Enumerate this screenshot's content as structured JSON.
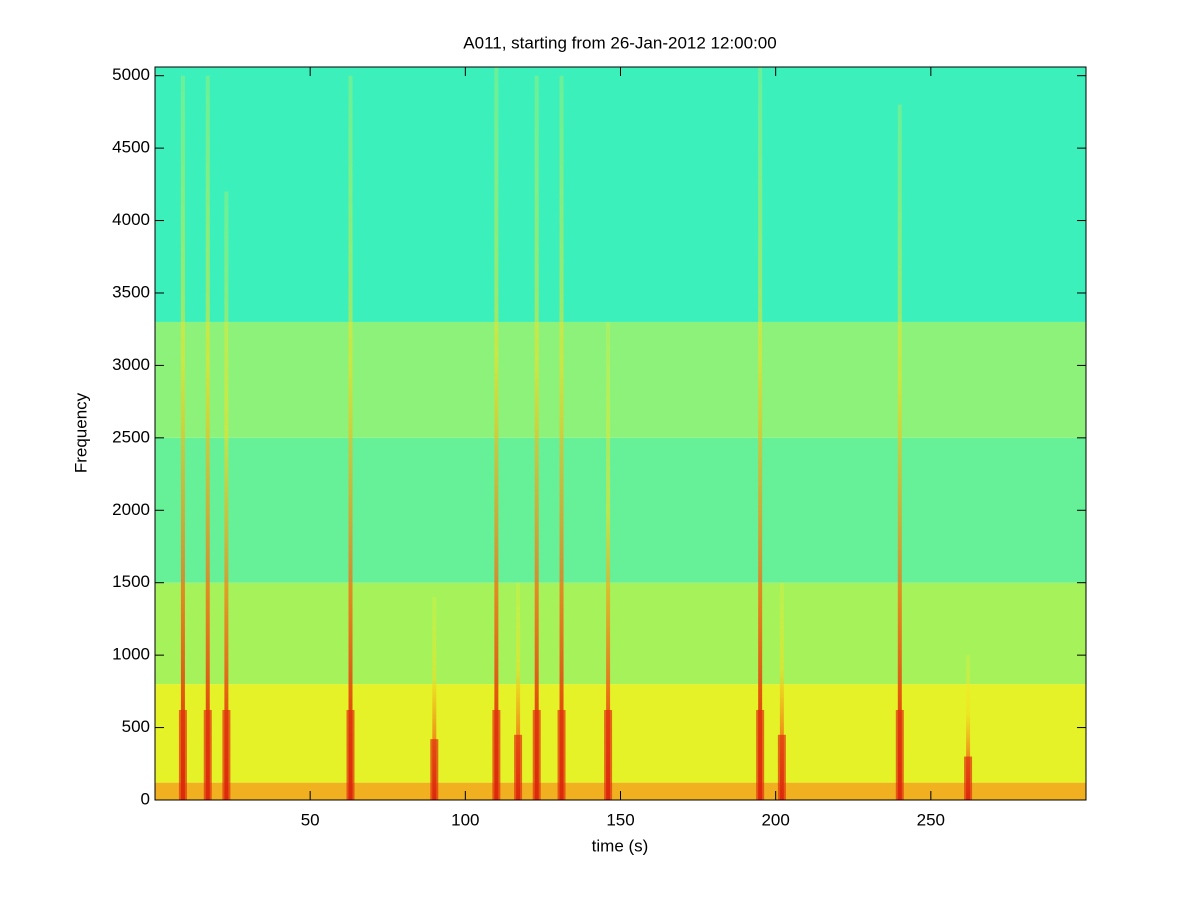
{
  "chart_data": {
    "type": "spectrogram",
    "title": "A011, starting from 26-Jan-2012 12:00:00",
    "xlabel": "time (s)",
    "ylabel": "Frequency",
    "xlim": [
      0,
      300
    ],
    "ylim": [
      0,
      5060
    ],
    "xticks": [
      50,
      100,
      150,
      200,
      250
    ],
    "yticks": [
      0,
      500,
      1000,
      1500,
      2000,
      2500,
      3000,
      3500,
      4000,
      4500,
      5000
    ],
    "bands": [
      {
        "from": 0,
        "to": 120,
        "color": "#f0b020"
      },
      {
        "from": 120,
        "to": 800,
        "color": "#e6f228"
      },
      {
        "from": 800,
        "to": 1500,
        "color": "#a6f25a"
      },
      {
        "from": 1500,
        "to": 2500,
        "color": "#66f098"
      },
      {
        "from": 2500,
        "to": 3300,
        "color": "#8cf27a"
      },
      {
        "from": 3300,
        "to": 5060,
        "color": "#3cf0bc"
      }
    ],
    "event_color": "#e03010",
    "events": [
      {
        "t": 9,
        "f": 5000
      },
      {
        "t": 17,
        "f": 5000
      },
      {
        "t": 23,
        "f": 4200
      },
      {
        "t": 63,
        "f": 5000
      },
      {
        "t": 90,
        "f": 1400
      },
      {
        "t": 110,
        "f": 5060
      },
      {
        "t": 117,
        "f": 1500
      },
      {
        "t": 123,
        "f": 5000
      },
      {
        "t": 131,
        "f": 5000
      },
      {
        "t": 146,
        "f": 3300
      },
      {
        "t": 195,
        "f": 5060
      },
      {
        "t": 202,
        "f": 1500
      },
      {
        "t": 240,
        "f": 4800
      },
      {
        "t": 262,
        "f": 1000
      }
    ]
  }
}
